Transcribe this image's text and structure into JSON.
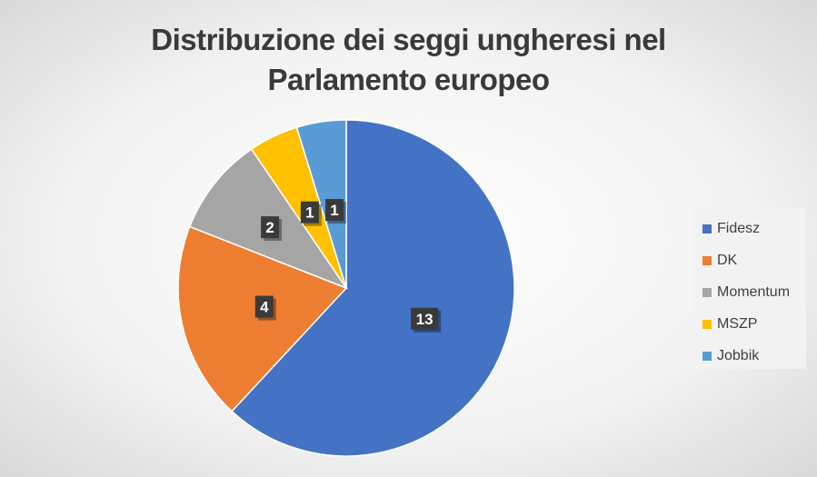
{
  "chart_data": {
    "type": "pie",
    "title": "Distribuzione dei seggi ungheresi nel Parlamento europeo",
    "title_lines": [
      "Distribuzione dei seggi ungheresi nel",
      "Parlamento europeo"
    ],
    "categories": [
      "Fidesz",
      "DK",
      "Momentum",
      "MSZP",
      "Jobbik"
    ],
    "values": [
      13,
      4,
      2,
      1,
      1
    ],
    "colors": [
      "#4472C4",
      "#ED7D31",
      "#A5A5A5",
      "#FFC000",
      "#5B9BD5"
    ],
    "data_label_color": "#3a3a3a",
    "legend_position": "right",
    "start_angle": "12 o'clock",
    "direction": "clockwise"
  }
}
